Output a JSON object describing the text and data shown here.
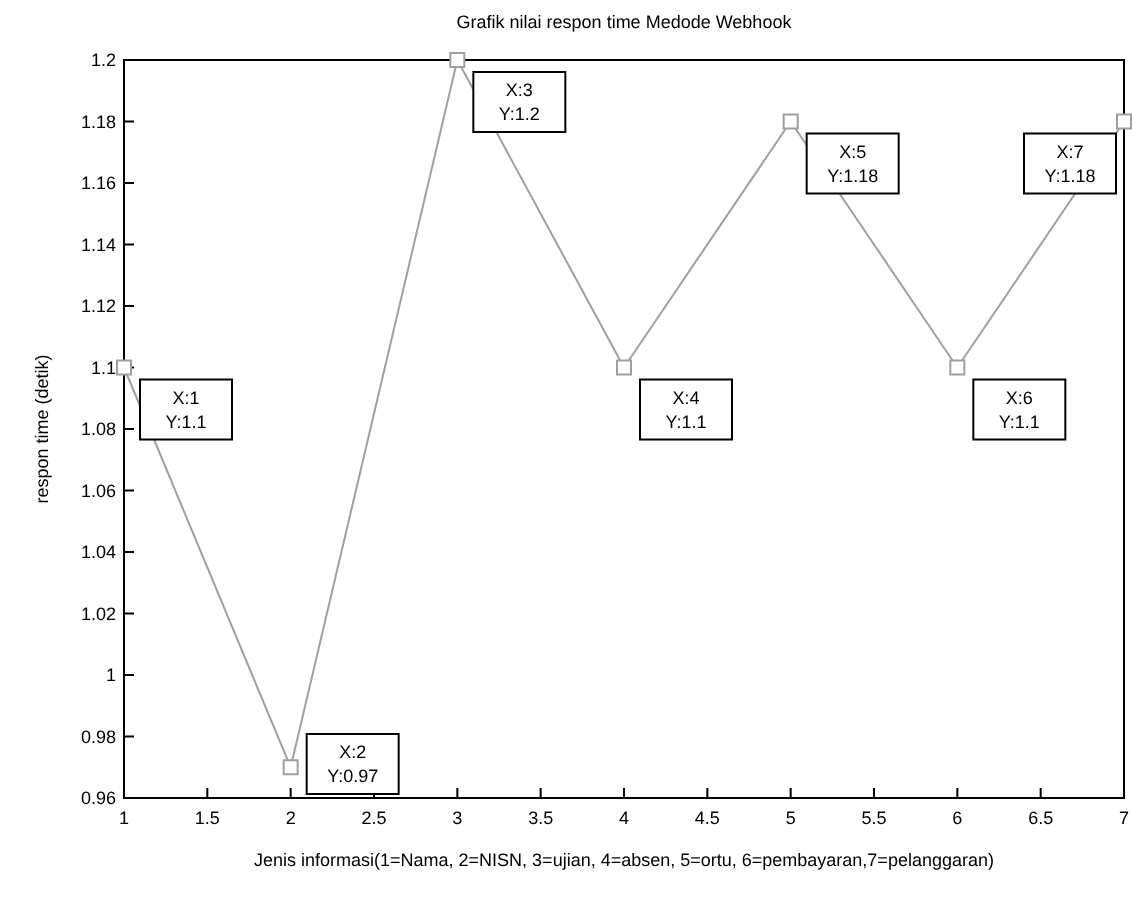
{
  "chart_data": {
    "type": "line",
    "title": "Grafik nilai respon time Medode Webhook",
    "xlabel": "Jenis informasi(1=Nama, 2=NISN, 3=ujian, 4=absen, 5=ortu, 6=pembayaran,7=pelanggaran)",
    "ylabel": "respon time (detik)",
    "x": [
      1,
      2,
      3,
      4,
      5,
      6,
      7
    ],
    "series": [
      {
        "color": "#a0a0a0",
        "values": [
          1.1,
          0.97,
          1.2,
          1.1,
          1.18,
          1.1,
          1.18
        ]
      }
    ],
    "xlim": [
      1,
      7
    ],
    "xticks": [
      1,
      1.5,
      2,
      2.5,
      3,
      3.5,
      4,
      4.5,
      5,
      5.5,
      6,
      6.5,
      7
    ],
    "ylim": [
      0.96,
      1.2
    ],
    "yticks": [
      0.96,
      0.98,
      1,
      1.02,
      1.04,
      1.06,
      1.08,
      1.1,
      1.12,
      1.14,
      1.16,
      1.18,
      1.2
    ],
    "marker": "square",
    "line_style": "solid",
    "grid": false,
    "annotations": [
      {
        "text": "X:1 Y:1.1",
        "x": 1,
        "y": 1.1
      },
      {
        "text": "X:2 Y:0.97",
        "x": 2,
        "y": 0.97
      },
      {
        "text": "X:3 Y:1.2",
        "x": 3,
        "y": 1.2
      },
      {
        "text": "X:4 Y:1.1",
        "x": 4,
        "y": 1.1
      },
      {
        "text": "X:5 Y:1.18",
        "x": 5,
        "y": 1.18
      },
      {
        "text": "X:6 Y:1.1",
        "x": 6,
        "y": 1.1
      },
      {
        "text": "X:7 Y:1.18",
        "x": 7,
        "y": 1.18
      }
    ]
  }
}
